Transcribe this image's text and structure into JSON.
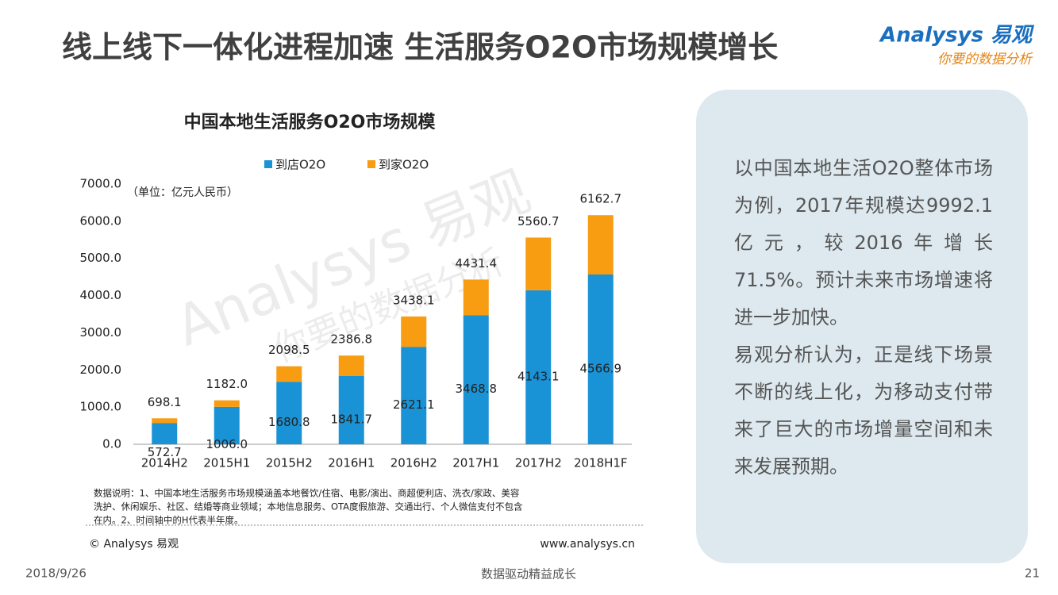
{
  "header": {
    "title": "线上线下一体化进程加速  生活服务O2O市场规模增长",
    "logo_main": "Analysys 易观",
    "logo_sub": "你要的数据分析"
  },
  "chart_data": {
    "type": "bar",
    "stacked": true,
    "title": "中国本地生活服务O2O市场规模",
    "unit_note": "（单位：亿元人民币）",
    "watermark": [
      "Analysys 易观",
      "你要的数据分析"
    ],
    "categories": [
      "2014H2",
      "2015H1",
      "2015H2",
      "2016H1",
      "2016H2",
      "2017H1",
      "2017H2",
      "2018H1F"
    ],
    "series": [
      {
        "name": "到店O2O",
        "color": "#1a93d6",
        "values": [
          572.7,
          1006.0,
          1680.8,
          1841.7,
          2621.1,
          3468.8,
          4143.1,
          4566.9
        ],
        "value_labels": [
          "572.7",
          "1006.0",
          "1680.8",
          "1841.7",
          "2621.1",
          "3468.8",
          "4143.1",
          "4566.9"
        ]
      },
      {
        "name": "到家O2O",
        "color": "#f89c12",
        "values": [
          125.4,
          176.0,
          417.7,
          545.1,
          817.0,
          962.6,
          1417.6,
          1595.8
        ]
      }
    ],
    "totals": {
      "values": [
        698.1,
        1182.0,
        2098.5,
        2386.8,
        3438.1,
        4431.4,
        5560.7,
        6162.7
      ],
      "value_labels": [
        "698.1",
        "1182.0",
        "2098.5",
        "2386.8",
        "3438.1",
        "4431.4",
        "5560.7",
        "6162.7"
      ]
    },
    "ylim": [
      0,
      7000
    ],
    "yticks": [
      {
        "value": 0,
        "label": "0.0"
      },
      {
        "value": 1000,
        "label": "1000.0"
      },
      {
        "value": 2000,
        "label": "2000.0"
      },
      {
        "value": 3000,
        "label": "3000.0"
      },
      {
        "value": 4000,
        "label": "4000.0"
      },
      {
        "value": 5000,
        "label": "5000.0"
      },
      {
        "value": 6000,
        "label": "6000.0"
      },
      {
        "value": 7000,
        "label": "7000.0"
      }
    ],
    "grid": false,
    "legend": "top",
    "notes": [
      "数据说明：1、中国本地生活服务市场规模涵盖本地餐饮/住宿、电影/演出、商超便利店、洗衣/家政、美容",
      "洗护、休闲娱乐、社区、结婚等商业领域；本地信息服务、OTA度假旅游、交通出行、个人微信支付不包含",
      "在内。2、时间轴中的H代表半年度。"
    ],
    "copyright": "© Analysys 易观",
    "url": "www.analysys.cn"
  },
  "panel": {
    "paragraphs": [
      "以中国本地生活O2O整体市场为例，2017年规模达9992.1亿元，较2016年增长71.5%。预计未来市场增速将进一步加快。",
      "易观分析认为，正是线下场景不断的线上化，为移动支付带来了巨大的市场增量空间和未来发展预期。"
    ]
  },
  "footer": {
    "date": "2018/9/26",
    "slogan": "数据驱动精益成长",
    "page": "21"
  }
}
